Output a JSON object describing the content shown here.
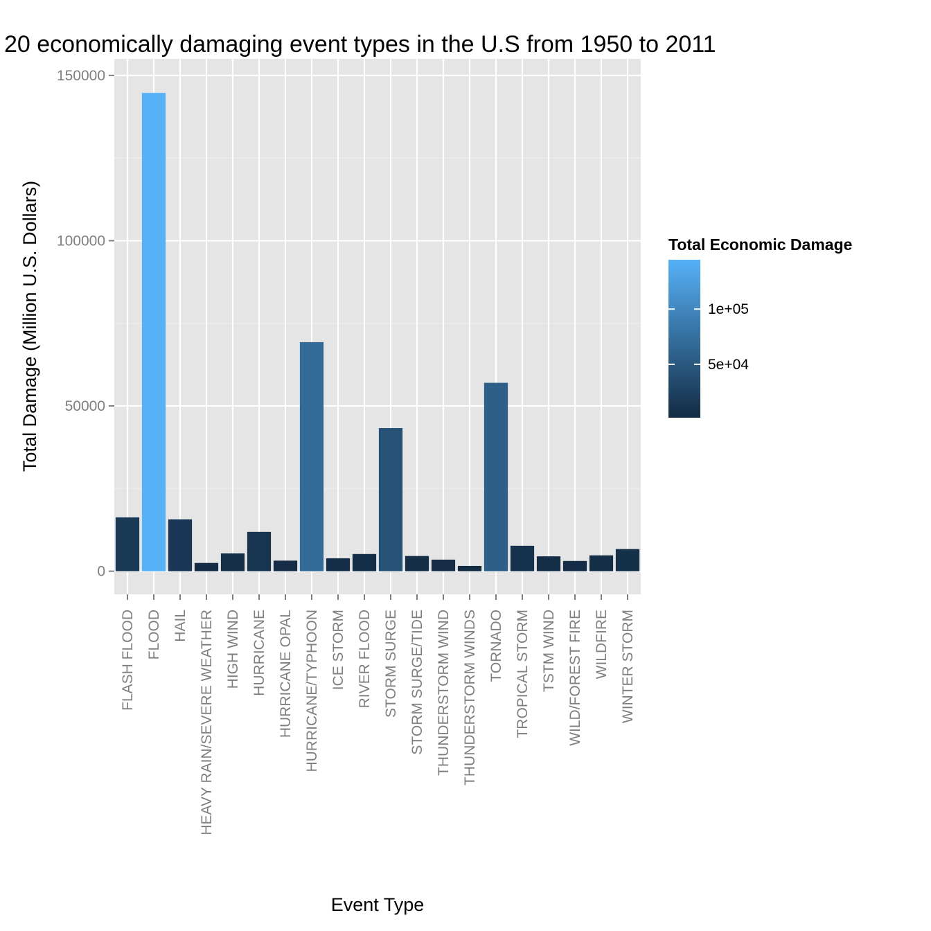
{
  "chart_data": {
    "type": "bar",
    "title": "20 economically damaging event types in the U.S from 1950 to 2011",
    "xlabel": "Event Type",
    "ylabel": "Total Damage (Million U.S. Dollars)",
    "ylim": [
      -7000,
      155000
    ],
    "yticks": [
      0,
      50000,
      100000,
      150000
    ],
    "ytick_labels": [
      "0",
      "50000",
      "100000",
      "150000"
    ],
    "grid": true,
    "categories": [
      "FLASH FLOOD",
      "FLOOD",
      "HAIL",
      "HEAVY RAIN/SEVERE WEATHER",
      "HIGH WIND",
      "HURRICANE",
      "HURRICANE OPAL",
      "HURRICANE/TYPHOON",
      "ICE STORM",
      "RIVER FLOOD",
      "STORM SURGE",
      "STORM SURGE/TIDE",
      "THUNDERSTORM WIND",
      "THUNDERSTORM WINDS",
      "TORNADO",
      "TROPICAL STORM",
      "TSTM WIND",
      "WILD/FOREST FIRE",
      "WILDFIRE",
      "WINTER STORM"
    ],
    "values": [
      16300,
      144700,
      15700,
      2500,
      5400,
      11900,
      3200,
      69300,
      3900,
      5200,
      43300,
      4600,
      3500,
      1600,
      57000,
      7700,
      4500,
      3100,
      4800,
      6700
    ],
    "legend": {
      "title": "Total Economic Damage",
      "position": "right",
      "labels": [
        "1e+05",
        "5e+04"
      ],
      "label_values": [
        100000,
        50000
      ],
      "low_color": "#132b43",
      "high_color": "#56b1f7"
    },
    "colors": {
      "panel_background": "#e5e5e5",
      "grid_major": "#ffffff",
      "grid_minor": "#f2f2f2"
    }
  }
}
